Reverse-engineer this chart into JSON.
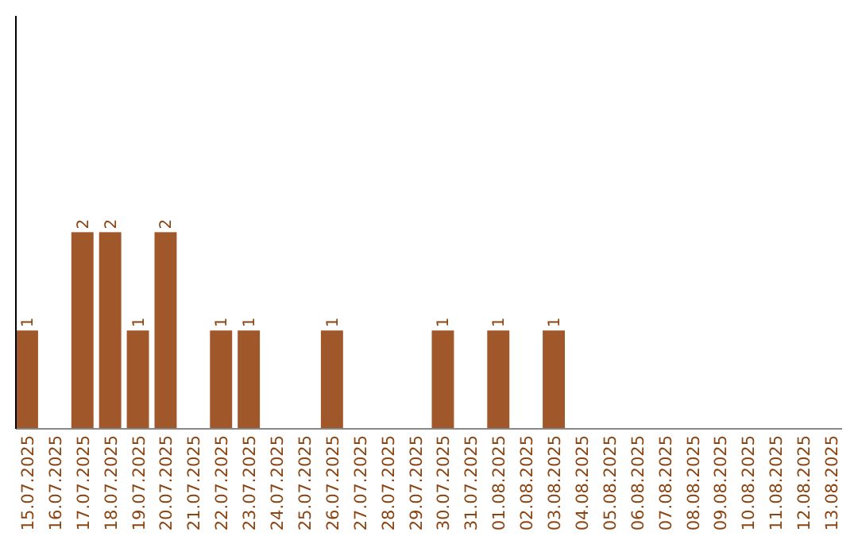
{
  "chart_data": {
    "type": "bar",
    "categories": [
      "15.07.2025",
      "16.07.2025",
      "17.07.2025",
      "18.07.2025",
      "19.07.2025",
      "20.07.2025",
      "21.07.2025",
      "22.07.2025",
      "23.07.2025",
      "24.07.2025",
      "25.07.2025",
      "26.07.2025",
      "27.07.2025",
      "28.07.2025",
      "29.07.2025",
      "30.07.2025",
      "31.07.2025",
      "01.08.2025",
      "02.08.2025",
      "03.08.2025",
      "04.08.2025",
      "05.08.2025",
      "06.08.2025",
      "07.08.2025",
      "08.08.2025",
      "09.08.2025",
      "10.08.2025",
      "11.08.2025",
      "12.08.2025",
      "13.08.2025"
    ],
    "values": [
      1,
      0,
      2,
      2,
      1,
      2,
      0,
      1,
      1,
      0,
      0,
      1,
      0,
      0,
      0,
      1,
      0,
      1,
      0,
      1,
      0,
      0,
      0,
      0,
      0,
      0,
      0,
      0,
      0,
      0
    ],
    "value_labels": [
      "1",
      null,
      "2",
      "2",
      "1",
      "2",
      null,
      "1",
      "1",
      null,
      null,
      "1",
      null,
      null,
      null,
      "1",
      null,
      "1",
      null,
      "1",
      null,
      null,
      null,
      null,
      null,
      null,
      null,
      null,
      null,
      null
    ],
    "color": "#a0582a",
    "ylim": [
      0,
      4.2
    ],
    "tick_labels": "x"
  }
}
